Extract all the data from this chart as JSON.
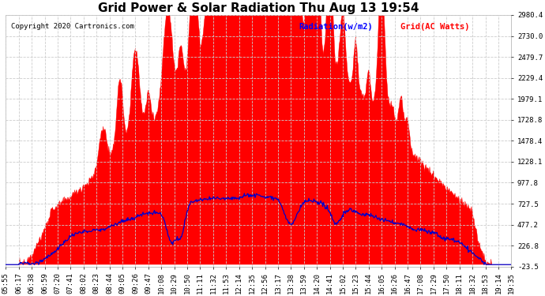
{
  "title": "Grid Power & Solar Radiation Thu Aug 13 19:54",
  "copyright": "Copyright 2020 Cartronics.com",
  "legend_radiation": "Radiation(w/m2)",
  "legend_grid": "Grid(AC Watts)",
  "ylabel_right_ticks": [
    2980.4,
    2730.0,
    2479.7,
    2229.4,
    1979.1,
    1728.8,
    1478.4,
    1228.1,
    977.8,
    727.5,
    477.2,
    226.8,
    -23.5
  ],
  "ymin": -23.5,
  "ymax": 2980.4,
  "grid_color": "#cccccc",
  "background_color": "#ffffff",
  "fill_color": "#ff0000",
  "line_color_radiation": "#0000cc",
  "title_fontsize": 11,
  "tick_fontsize": 6.5,
  "copyright_fontsize": 6.5,
  "legend_fontsize": 7.5,
  "x_tick_labels": [
    "05:55",
    "06:17",
    "06:38",
    "06:59",
    "07:20",
    "07:41",
    "08:02",
    "08:23",
    "08:44",
    "09:05",
    "09:26",
    "09:47",
    "10:08",
    "10:29",
    "10:50",
    "11:11",
    "11:32",
    "11:53",
    "12:14",
    "12:35",
    "12:56",
    "13:17",
    "13:38",
    "13:59",
    "14:20",
    "14:41",
    "15:02",
    "15:23",
    "15:44",
    "16:05",
    "16:26",
    "16:47",
    "17:08",
    "17:29",
    "17:50",
    "18:11",
    "18:32",
    "18:53",
    "19:14",
    "19:35"
  ]
}
